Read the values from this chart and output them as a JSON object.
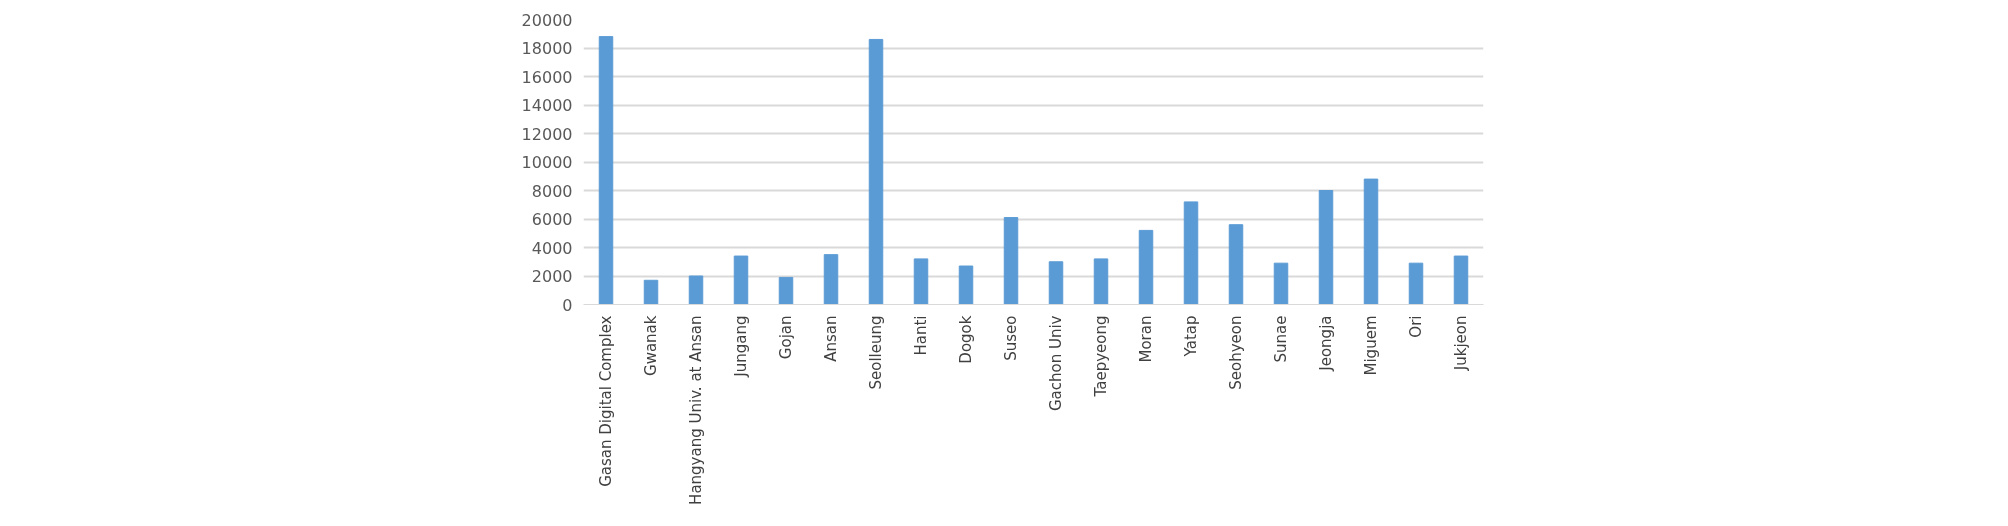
{
  "chart_data": {
    "type": "bar",
    "categories": [
      "Gasan Digital Complex",
      "Gwanak",
      "Hangyang Univ. at Ansan",
      "Jungang",
      "Gojan",
      "Ansan",
      "Seolleung",
      "Hanti",
      "Dogok",
      "Suseo",
      "Gachon Univ",
      "Taepyeong",
      "Moran",
      "Yatap",
      "Seohyeon",
      "Sunae",
      "Jeongja",
      "Miguem",
      "Ori",
      "Jukjeon"
    ],
    "values": [
      18800,
      1700,
      2000,
      3400,
      1900,
      3500,
      18600,
      3200,
      2700,
      6100,
      3000,
      3200,
      5200,
      7200,
      5600,
      2900,
      8000,
      8800,
      2900,
      3400
    ],
    "color": "#5b9bd5",
    "ylim": [
      0,
      20000
    ],
    "yticks": [
      0,
      2000,
      4000,
      6000,
      8000,
      10000,
      12000,
      14000,
      16000,
      18000,
      20000
    ],
    "grid": "y"
  }
}
